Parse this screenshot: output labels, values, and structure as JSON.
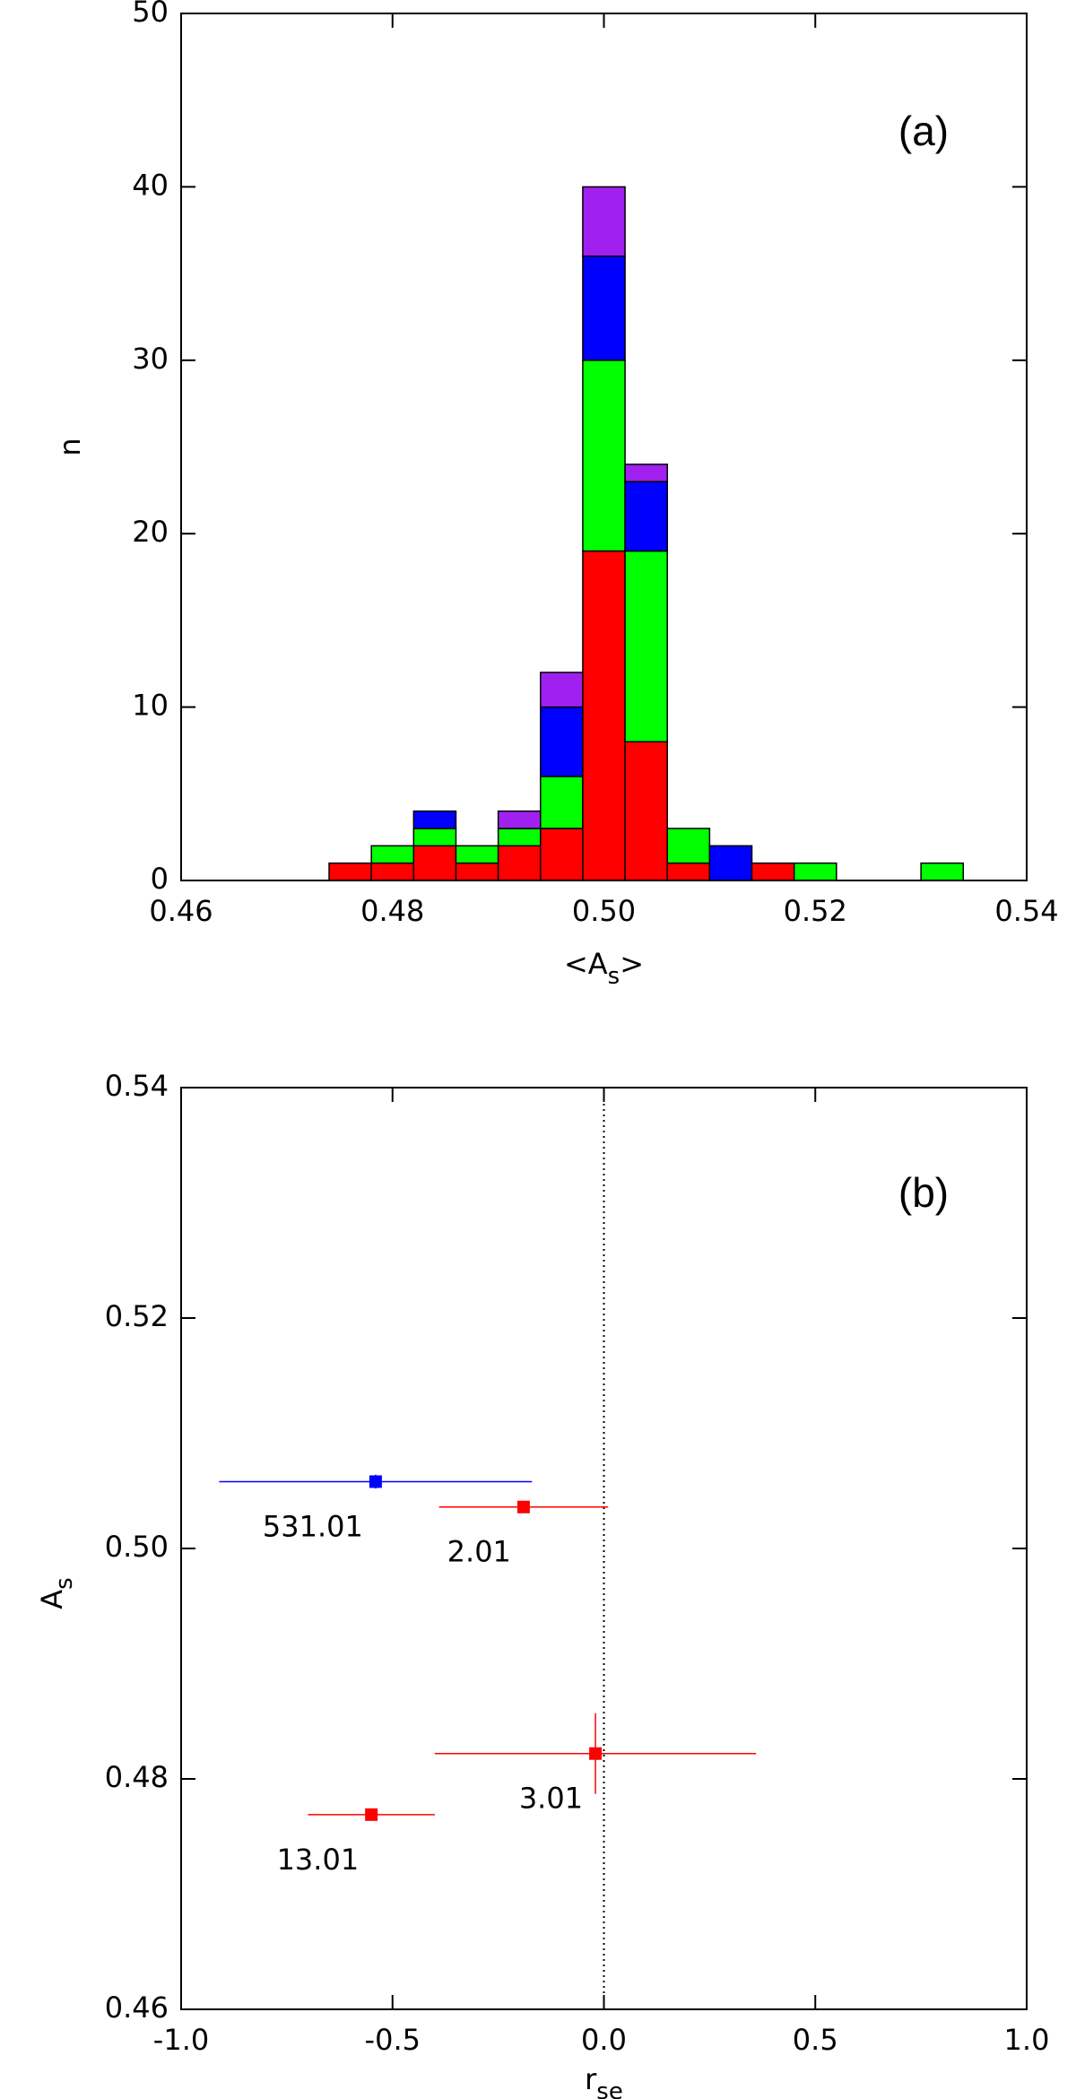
{
  "chart_data": [
    {
      "type": "histogram",
      "annotation": "(a)",
      "x_label": [
        "<A",
        "s",
        ">"
      ],
      "y_label": "n",
      "bins": [
        0.474,
        0.478,
        0.482,
        0.486,
        0.49,
        0.494,
        0.498,
        0.502,
        0.506,
        0.51,
        0.514,
        0.518,
        0.522,
        0.526,
        0.53,
        0.534
      ],
      "series": [
        {
          "color": "#ff0000",
          "values": [
            1,
            1,
            2,
            1,
            2,
            3,
            19,
            8,
            1,
            0,
            1,
            0,
            0,
            0,
            0
          ]
        },
        {
          "color": "#00ff00",
          "values": [
            0,
            1,
            1,
            1,
            1,
            3,
            11,
            11,
            2,
            0,
            0,
            1,
            0,
            0,
            1
          ]
        },
        {
          "color": "#0000ff",
          "values": [
            0,
            0,
            1,
            0,
            0,
            4,
            6,
            4,
            0,
            2,
            0,
            0,
            0,
            0,
            0
          ]
        },
        {
          "color": "#a020f0",
          "values": [
            0,
            0,
            0,
            0,
            1,
            2,
            4,
            1,
            0,
            0,
            0,
            0,
            0,
            0,
            0
          ]
        }
      ],
      "xlim": [
        0.46,
        0.54
      ],
      "xticks": [
        0.46,
        0.48,
        {
          "value": 0.5,
          "label": "0.50"
        },
        0.52,
        0.54
      ],
      "ylim": [
        0,
        50
      ],
      "yticks": [
        0,
        10,
        20,
        30,
        40,
        50
      ]
    },
    {
      "type": "errorbar-scatter",
      "annotation": "(b)",
      "x_label": [
        "r",
        "se"
      ],
      "y_label": [
        "A",
        "s"
      ],
      "reference_x": 0,
      "series": [
        {
          "color": "#0000ff",
          "x": [
            -0.54
          ],
          "values": [
            0.5058
          ],
          "xerr": [
            0.37
          ],
          "yerr": [
            0.0006
          ],
          "labels": [
            "531.01"
          ]
        },
        {
          "color": "#ff0000",
          "x": [
            -0.19,
            -0.02,
            -0.55
          ],
          "values": [
            0.5036,
            0.4822,
            0.4769
          ],
          "xerr": [
            0.2,
            0.38,
            0.15
          ],
          "yerr": [
            0.0005,
            0.0035,
            0.0003
          ],
          "labels": [
            "2.01",
            "3.01",
            "13.01"
          ]
        }
      ],
      "xlim": [
        -1,
        1
      ],
      "xticks": [
        {
          "value": -1,
          "label": "-1.0"
        },
        {
          "value": -0.5,
          "label": "-0.5"
        },
        {
          "value": 0,
          "label": "0.0"
        },
        {
          "value": 0.5,
          "label": "0.5"
        },
        {
          "value": 1,
          "label": "1.0"
        }
      ],
      "ylim": [
        0.46,
        0.54
      ],
      "yticks": [
        0.46,
        0.48,
        {
          "value": 0.5,
          "label": "0.50"
        },
        0.52,
        0.54
      ]
    }
  ]
}
